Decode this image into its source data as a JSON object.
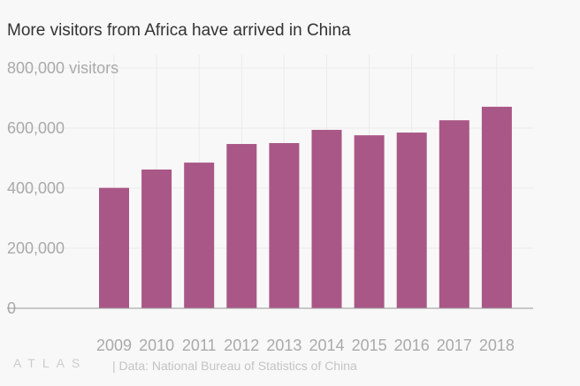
{
  "title": "More visitors from Africa have arrived in China",
  "source": "| Data: National Bureau of Statistics of China",
  "logo": "ATLAS",
  "chart_data": {
    "type": "bar",
    "title": "More visitors from Africa have arrived in China",
    "categories": [
      "2009",
      "2010",
      "2011",
      "2012",
      "2013",
      "2014",
      "2015",
      "2016",
      "2017",
      "2018"
    ],
    "values": [
      401000,
      462000,
      485000,
      547000,
      550000,
      594000,
      576000,
      585000,
      626000,
      671000
    ],
    "ylim": [
      0,
      800000
    ],
    "yticks": [
      0,
      200000,
      400000,
      600000,
      800000
    ],
    "ytick_labels": [
      "0",
      "200,000",
      "400,000",
      "600,000",
      "800,000 visitors"
    ],
    "grid": true,
    "bar_color": "#a95786"
  }
}
